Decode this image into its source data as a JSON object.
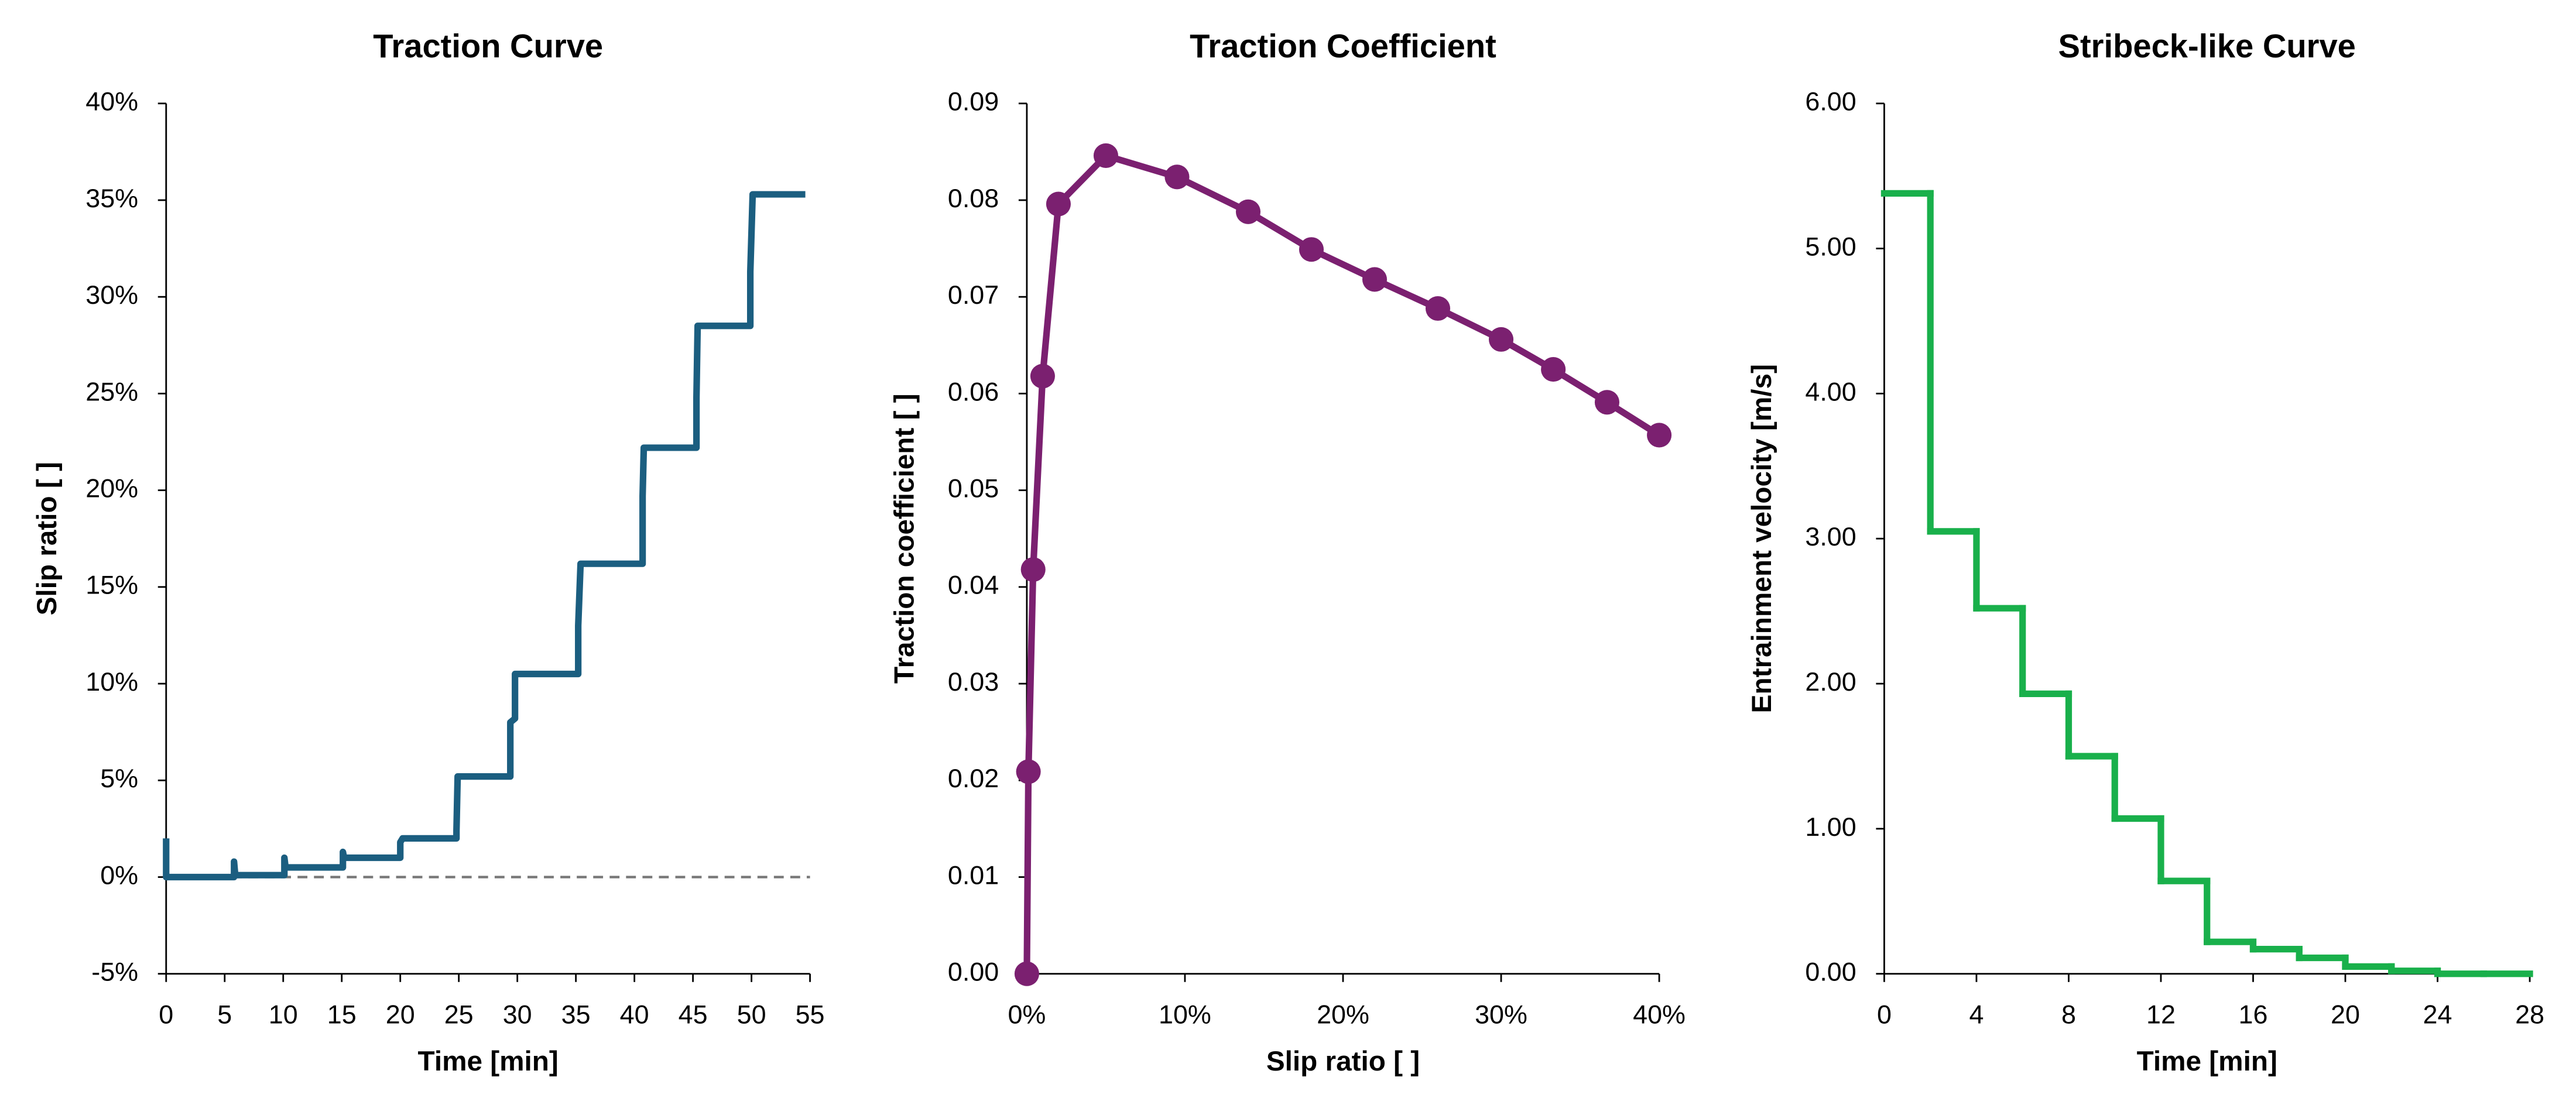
{
  "chart_data": [
    {
      "type": "line",
      "title": "Traction Curve",
      "x_label": "Time [min]",
      "y_label": "Slip ratio [ ]",
      "color": "#1b5e80",
      "x": [
        0,
        0,
        5.8,
        5.8,
        5.9,
        10.1,
        10.1,
        10.2,
        15.1,
        15.1,
        15.2,
        20.0,
        20.0,
        20.2,
        24.8,
        24.8,
        24.9,
        29.4,
        29.4,
        29.8,
        29.8,
        35.2,
        35.2,
        35.4,
        40.7,
        40.7,
        40.8,
        45.3,
        45.3,
        45.4,
        49.9,
        49.9,
        50.1,
        54.6
      ],
      "values": [
        2.0,
        0,
        0,
        0.8,
        0.1,
        0.1,
        1.0,
        0.5,
        0.5,
        1.3,
        1.0,
        1.0,
        1.8,
        2.0,
        2.0,
        2.4,
        5.2,
        5.2,
        8.0,
        8.2,
        10.5,
        10.5,
        13.0,
        16.2,
        16.2,
        19.7,
        22.2,
        22.2,
        24.8,
        28.5,
        28.5,
        31.3,
        35.3,
        35.3
      ],
      "reference_line": 0,
      "xlim": [
        0,
        55
      ],
      "xticks": [
        0,
        5,
        10,
        15,
        20,
        25,
        30,
        35,
        40,
        45,
        50,
        55
      ],
      "ylim": [
        -5,
        40
      ],
      "yticks": [
        {
          "value": -5,
          "label": "-5%"
        },
        {
          "value": 0,
          "label": "0%"
        },
        {
          "value": 5,
          "label": "5%"
        },
        {
          "value": 10,
          "label": "10%"
        },
        {
          "value": 15,
          "label": "15%"
        },
        {
          "value": 20,
          "label": "20%"
        },
        {
          "value": 25,
          "label": "25%"
        },
        {
          "value": 30,
          "label": "30%"
        },
        {
          "value": 35,
          "label": "35%"
        },
        {
          "value": 40,
          "label": "40%"
        }
      ]
    },
    {
      "type": "line_markers",
      "title": "Traction Coefficient",
      "x_label": "Slip ratio [ ]",
      "y_label": "Traction coefficient [ ]",
      "color": "#7b2070",
      "x": [
        0,
        0.1,
        0.4,
        1,
        2,
        5,
        9.5,
        14,
        18,
        22,
        26,
        30,
        33.3,
        36.7,
        40
      ],
      "values": [
        0,
        0.0209,
        0.0418,
        0.0618,
        0.0796,
        0.0846,
        0.0824,
        0.0788,
        0.0749,
        0.0718,
        0.0688,
        0.0656,
        0.0625,
        0.0591,
        0.0557
      ],
      "xlim": [
        0,
        40
      ],
      "xticks": [
        {
          "value": 0,
          "label": "0%"
        },
        {
          "value": 10,
          "label": "10%"
        },
        {
          "value": 20,
          "label": "20%"
        },
        {
          "value": 30,
          "label": "30%"
        },
        {
          "value": 40,
          "label": "40%"
        }
      ],
      "ylim": [
        0,
        0.09
      ],
      "yticks": [
        {
          "value": 0,
          "label": "0.00"
        },
        0.01,
        0.02,
        0.03,
        0.04,
        0.05,
        0.06,
        0.07,
        0.08,
        0.09
      ]
    },
    {
      "type": "step",
      "title": "Stribeck-like Curve",
      "x_label": "Time [min]",
      "y_label": "Entrainment velocity [m/s]",
      "color": "#19b04b",
      "x": [
        0,
        2,
        4,
        6,
        8,
        10,
        12,
        14,
        16,
        18,
        20,
        22,
        24,
        26
      ],
      "values": [
        5.38,
        3.05,
        2.52,
        1.93,
        1.5,
        1.07,
        0.64,
        0.22,
        0.17,
        0.11,
        0.05,
        0.02,
        0,
        0
      ],
      "xlim": [
        0,
        28
      ],
      "xticks": [
        0,
        4,
        8,
        12,
        16,
        20,
        24,
        28
      ],
      "ylim": [
        0,
        6
      ],
      "yticks": [
        {
          "value": 0,
          "label": "0.00"
        },
        {
          "value": 1,
          "label": "1.00"
        },
        {
          "value": 2,
          "label": "2.00"
        },
        {
          "value": 3,
          "label": "3.00"
        },
        {
          "value": 4,
          "label": "4.00"
        },
        {
          "value": 5,
          "label": "5.00"
        },
        {
          "value": 6,
          "label": "6.00"
        }
      ]
    }
  ]
}
